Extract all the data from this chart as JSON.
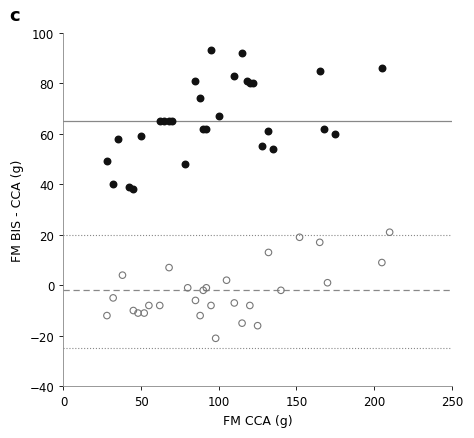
{
  "title_label": "c",
  "xlabel": "FM CCA (g)",
  "ylabel": "FM BIS - CCA (g)",
  "xlim": [
    0,
    250
  ],
  "ylim": [
    -40,
    100
  ],
  "xticks": [
    0,
    50,
    100,
    150,
    200,
    250
  ],
  "yticks": [
    -40,
    -20,
    0,
    20,
    40,
    60,
    80,
    100
  ],
  "solid_line_y": 65,
  "dashed_line_y": -2,
  "dotted_line_upper_y": 20,
  "dotted_line_lower_y": -25,
  "solid_line_color": "#888888",
  "dashed_line_color": "#888888",
  "dotted_line_color": "#888888",
  "filled_dots": [
    [
      28,
      49
    ],
    [
      32,
      40
    ],
    [
      35,
      58
    ],
    [
      42,
      39
    ],
    [
      45,
      38
    ],
    [
      50,
      59
    ],
    [
      62,
      65
    ],
    [
      65,
      65
    ],
    [
      68,
      65
    ],
    [
      70,
      65
    ],
    [
      78,
      48
    ],
    [
      85,
      81
    ],
    [
      88,
      74
    ],
    [
      90,
      62
    ],
    [
      92,
      62
    ],
    [
      95,
      93
    ],
    [
      100,
      67
    ],
    [
      110,
      83
    ],
    [
      115,
      92
    ],
    [
      118,
      81
    ],
    [
      120,
      80
    ],
    [
      122,
      80
    ],
    [
      128,
      55
    ],
    [
      132,
      61
    ],
    [
      135,
      54
    ],
    [
      165,
      85
    ],
    [
      168,
      62
    ],
    [
      175,
      60
    ],
    [
      205,
      86
    ]
  ],
  "open_dots": [
    [
      28,
      -12
    ],
    [
      32,
      -5
    ],
    [
      38,
      4
    ],
    [
      45,
      -10
    ],
    [
      48,
      -11
    ],
    [
      52,
      -11
    ],
    [
      55,
      -8
    ],
    [
      62,
      -8
    ],
    [
      68,
      7
    ],
    [
      80,
      -1
    ],
    [
      85,
      -6
    ],
    [
      88,
      -12
    ],
    [
      90,
      -2
    ],
    [
      92,
      -1
    ],
    [
      95,
      -8
    ],
    [
      98,
      -21
    ],
    [
      105,
      2
    ],
    [
      110,
      -7
    ],
    [
      115,
      -15
    ],
    [
      120,
      -8
    ],
    [
      125,
      -16
    ],
    [
      132,
      13
    ],
    [
      140,
      -2
    ],
    [
      152,
      19
    ],
    [
      165,
      17
    ],
    [
      170,
      1
    ],
    [
      205,
      9
    ],
    [
      210,
      21
    ]
  ],
  "bg_color": "#ffffff",
  "filled_dot_color": "#111111",
  "open_dot_edge_color": "#777777",
  "dot_size": 22,
  "open_dot_lw": 0.8
}
